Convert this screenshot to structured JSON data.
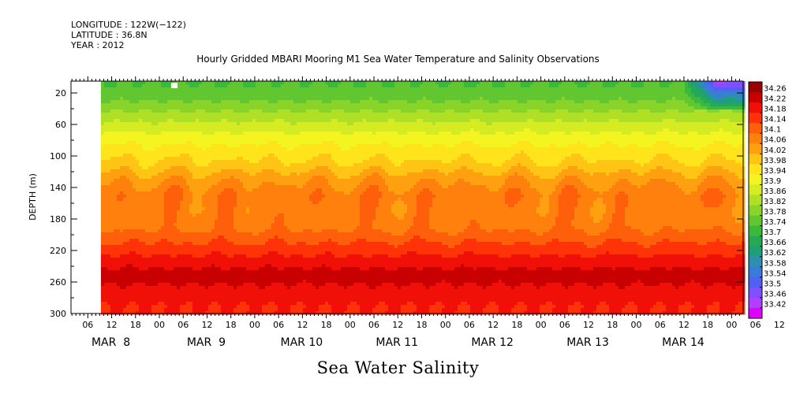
{
  "header": {
    "longitude": "LONGITUDE : 122W(−122)",
    "latitude": "LATITUDE : 36.8N",
    "year": "YEAR : 2012"
  },
  "chart_data": {
    "type": "heatmap",
    "title": "Hourly Gridded MBARI Mooring M1 Sea Water Temperature and Salinity Observations",
    "variable_title": "Sea Water Salinity",
    "ylabel": "DEPTH (m)",
    "ylim": [
      300,
      0
    ],
    "y_ticks": [
      20,
      60,
      100,
      140,
      180,
      220,
      260,
      300
    ],
    "x_hour_ticks": [
      "06",
      "12",
      "18",
      "00",
      "06",
      "12",
      "18",
      "00",
      "06",
      "12",
      "18",
      "00",
      "06",
      "12",
      "18",
      "00",
      "06",
      "12",
      "18",
      "00",
      "06",
      "12",
      "18",
      "00",
      "06",
      "12",
      "18",
      "00",
      "06",
      "12",
      "18",
      "00"
    ],
    "x_day_labels": [
      "MAR  8",
      "MAR  9",
      "MAR 10",
      "MAR 11",
      "MAR 12",
      "MAR 13",
      "MAR 14"
    ],
    "colorbar_levels": [
      "34.26",
      "34.22",
      "34.18",
      "34.14",
      "34.1",
      "34.06",
      "34.02",
      "33.98",
      "33.94",
      "33.9",
      "33.86",
      "33.82",
      "33.78",
      "33.74",
      "33.7",
      "33.66",
      "33.62",
      "33.58",
      "33.54",
      "33.5",
      "33.46",
      "33.42"
    ],
    "depth_profile": [
      {
        "depth": 10,
        "salinity": 33.74
      },
      {
        "depth": 30,
        "salinity": 33.78
      },
      {
        "depth": 50,
        "salinity": 33.84
      },
      {
        "depth": 70,
        "salinity": 33.9
      },
      {
        "depth": 90,
        "salinity": 33.95
      },
      {
        "depth": 110,
        "salinity": 33.99
      },
      {
        "depth": 130,
        "salinity": 34.05
      },
      {
        "depth": 150,
        "salinity": 34.09
      },
      {
        "depth": 170,
        "salinity": 34.08
      },
      {
        "depth": 190,
        "salinity": 34.09
      },
      {
        "depth": 210,
        "salinity": 34.14
      },
      {
        "depth": 230,
        "salinity": 34.19
      },
      {
        "depth": 250,
        "salinity": 34.24
      },
      {
        "depth": 270,
        "salinity": 34.21
      },
      {
        "depth": 290,
        "salinity": 34.18
      }
    ],
    "surface_fresh_patch": {
      "time_start": "MAR 14 12",
      "time_end": "MAR 15 00",
      "min_salinity": 33.44
    },
    "missing_data": {
      "time_start": "MAR 8 00",
      "time_end": "MAR 8 09"
    }
  }
}
